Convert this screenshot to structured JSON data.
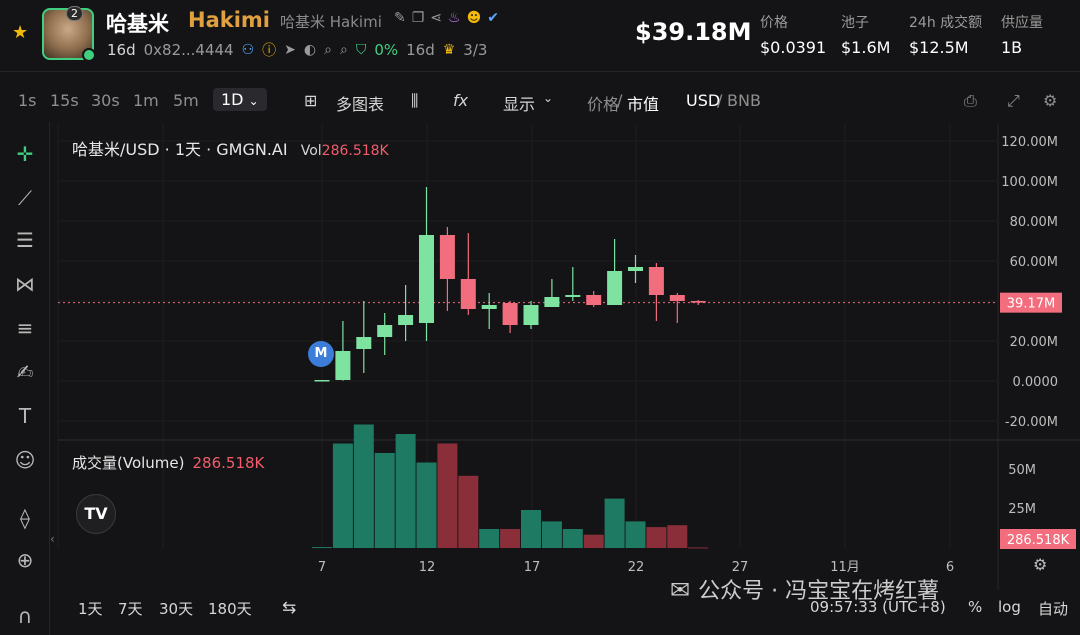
{
  "token": {
    "name_cn": "哈基米",
    "name_en": "Hakimi",
    "name_sub": "哈基米 Hakimi",
    "avatar_badge": "2",
    "age": "16d",
    "address": "0x82...4444",
    "holder_pct": "0%",
    "holder_age": "16d",
    "score": "3/3"
  },
  "stats": {
    "mcap": "$39.18M",
    "price_label": "价格",
    "price": "$0.0391",
    "pool_label": "池子",
    "pool": "$1.6M",
    "vol24_label": "24h 成交额",
    "vol24": "$12.5M",
    "supply_label": "供应量",
    "supply": "1B"
  },
  "toolbar": {
    "timeframes": [
      "1s",
      "15s",
      "30s",
      "1m",
      "5m"
    ],
    "active_tf": "1D",
    "multi_chart": "多图表",
    "fx": "fx",
    "display": "显示",
    "price_label": "价格",
    "mcap_label": "市值",
    "usd": "USD",
    "bnb": "BNB",
    "slash": "/"
  },
  "chart_title": {
    "pair": "哈基米/USD · 1天 · GMGN.AI",
    "vol_label": "Vol",
    "vol_value": "286.518K"
  },
  "volume_title": {
    "label": "成交量(Volume)",
    "value": "286.518K"
  },
  "marker": "M",
  "tv_logo": "TV",
  "bottom": {
    "ranges": [
      "1天",
      "7天",
      "30天",
      "180天"
    ],
    "time": "09:57:33 (UTC+8)",
    "pct": "%",
    "log": "log",
    "auto": "自动"
  },
  "watermark": "公众号 · 冯宝宝在烤红薯",
  "colors": {
    "up": "#7ee2a1",
    "down": "#f26d7d",
    "vol_up": "#1f7a63",
    "vol_down": "#8a2f3a",
    "accent": "#f0b90b"
  },
  "chart_data": {
    "type": "candlestick",
    "price_axis_ticks": [
      "120.00M",
      "100.00M",
      "80.00M",
      "60.00M",
      "40.00M",
      "20.00M",
      "0.0000",
      "-20.00M"
    ],
    "volume_axis_ticks": [
      "50M",
      "25M"
    ],
    "x_tick_labels": [
      "7",
      "12",
      "17",
      "22",
      "27",
      "11月",
      "6"
    ],
    "current_price_label": "39.17M",
    "current_volume_label": "286.518K",
    "ylim": [
      -20,
      120
    ],
    "candles": [
      {
        "o": 0.3,
        "h": 0.5,
        "l": 0.2,
        "c": 0.5,
        "v": 0.5
      },
      {
        "o": 0.5,
        "h": 30,
        "l": 0.2,
        "c": 15,
        "v": 55
      },
      {
        "o": 16,
        "h": 40,
        "l": 4,
        "c": 22,
        "v": 65
      },
      {
        "o": 22,
        "h": 34,
        "l": 13,
        "c": 28,
        "v": 50
      },
      {
        "o": 28,
        "h": 48,
        "l": 20,
        "c": 33,
        "v": 60
      },
      {
        "o": 29,
        "h": 97,
        "l": 20,
        "c": 73,
        "v": 45
      },
      {
        "o": 73,
        "h": 77,
        "l": 35,
        "c": 51,
        "v": 55
      },
      {
        "o": 51,
        "h": 74,
        "l": 33,
        "c": 36,
        "v": 38
      },
      {
        "o": 36,
        "h": 44,
        "l": 26,
        "c": 38,
        "v": 10
      },
      {
        "o": 39,
        "h": 40,
        "l": 24,
        "c": 28,
        "v": 10
      },
      {
        "o": 28,
        "h": 40,
        "l": 26,
        "c": 38,
        "v": 20
      },
      {
        "o": 37,
        "h": 51,
        "l": 37,
        "c": 42,
        "v": 14
      },
      {
        "o": 42,
        "h": 57,
        "l": 40,
        "c": 43,
        "v": 10
      },
      {
        "o": 43,
        "h": 45,
        "l": 37,
        "c": 38,
        "v": 7
      },
      {
        "o": 38,
        "h": 71,
        "l": 38,
        "c": 55,
        "v": 26
      },
      {
        "o": 55,
        "h": 63,
        "l": 49,
        "c": 57,
        "v": 14
      },
      {
        "o": 57,
        "h": 59,
        "l": 30,
        "c": 43,
        "v": 11
      },
      {
        "o": 43,
        "h": 44,
        "l": 29,
        "c": 40,
        "v": 12
      },
      {
        "o": 40,
        "h": 40.5,
        "l": 38,
        "c": 39.2,
        "v": 0.3
      }
    ]
  }
}
